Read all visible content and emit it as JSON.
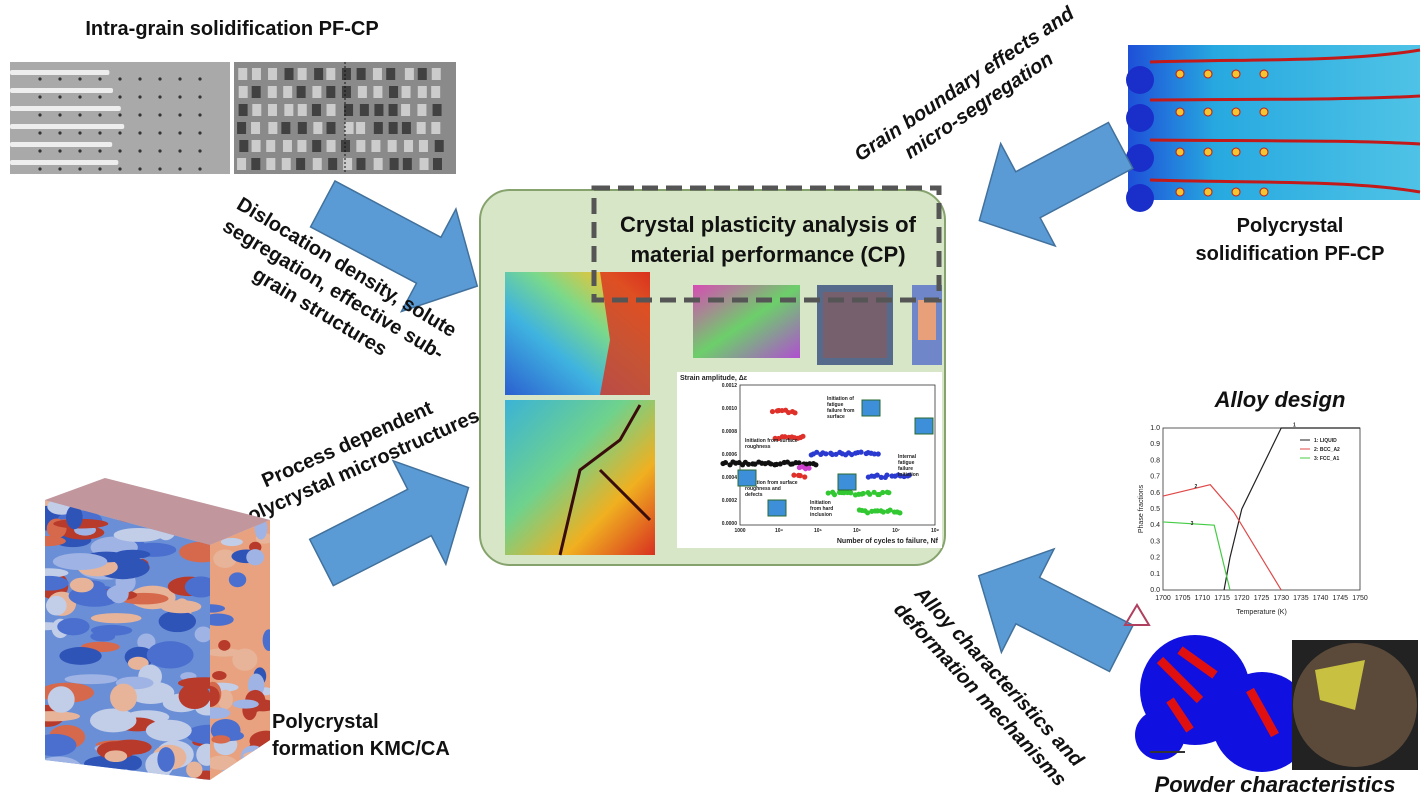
{
  "panels": {
    "intra_grain": {
      "title": "Intra-grain solidification PF-CP"
    },
    "center": {
      "title_lines": [
        "Crystal plasticity analysis of",
        "material performance (CP)"
      ]
    },
    "polycrystal_solidification": {
      "title_lines": [
        "Polycrystal",
        "solidification PF-CP"
      ]
    },
    "polycrystal_formation": {
      "title_lines": [
        "Polycrystal",
        "formation KMC/CA"
      ]
    },
    "alloy_design": {
      "title": "Alloy design"
    },
    "powder": {
      "title": "Powder characteristics"
    }
  },
  "arrows": [
    {
      "label_lines": [
        "Dislocation density, solute",
        "segregation, effective sub-",
        "grain structures"
      ]
    },
    {
      "label_lines": [
        "Process dependent",
        "polycrystal microstructures"
      ]
    },
    {
      "label_lines": [
        "Grain boundary effects and",
        "micro-segregation"
      ]
    },
    {
      "label_lines": [
        "Alloy characteristics and",
        "deformation mechanisms"
      ]
    }
  ],
  "fatigue_plot": {
    "y_label": "Strain amplitude, Δε",
    "x_label": "Number of cycles to failure,  Nf",
    "yticks": [
      "0.0012",
      "0.0010",
      "0.0008",
      "0.0006",
      "0.0004",
      "0.0002",
      "0.0000"
    ],
    "xticks": [
      "1000",
      "10⁴",
      "10⁵",
      "10⁶",
      "10⁷",
      "10⁸"
    ],
    "annotations": [
      [
        "Initiation from surface",
        "roughness"
      ],
      [
        "Initiation of",
        "fatigue",
        "failure from",
        "surface"
      ],
      [
        "Internal",
        "fatigue",
        "failure",
        "initiation"
      ],
      [
        "Initiation from surface",
        "roughness and",
        "defects"
      ],
      [
        "Initiation",
        "from hard",
        "inclusion"
      ]
    ]
  },
  "phase_plot": {
    "y_label": "Phase fractions",
    "x_label": "Temperature (K)",
    "yticks": [
      "0.0",
      "0.1",
      "0.2",
      "0.3",
      "0.4",
      "0.5",
      "0.6",
      "0.7",
      "0.8",
      "0.9",
      "1.0"
    ],
    "xticks": [
      "1700",
      "1705",
      "1710",
      "1715",
      "1720",
      "1725",
      "1730",
      "1735",
      "1740",
      "1745",
      "1750"
    ],
    "legend": [
      "1: LIQUID",
      "2: BCC_A2",
      "3: FCC_A1"
    ],
    "curve_labels": [
      "1",
      "2",
      "3"
    ]
  }
}
